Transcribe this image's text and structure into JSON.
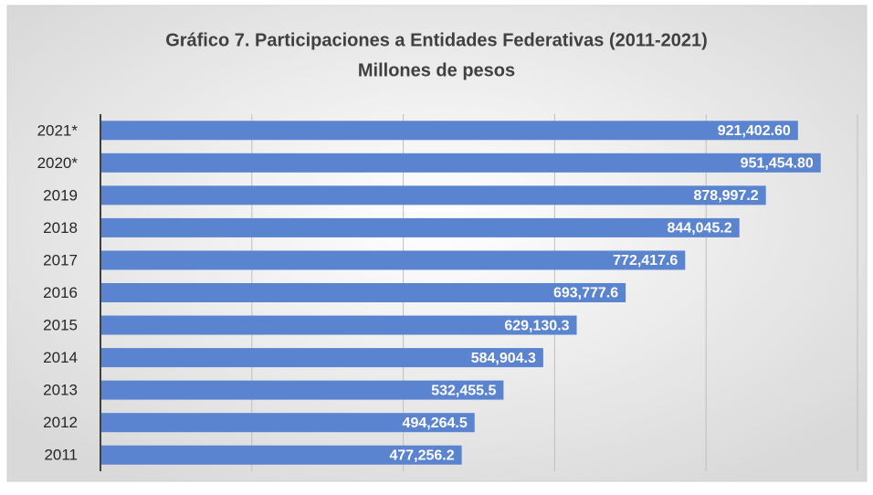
{
  "chart_data": {
    "type": "barh",
    "title": "Gráfico 7. Participaciones a Entidades Federativas (2011-2021)",
    "subtitle": "Millones de pesos",
    "categories": [
      "2021*",
      "2020*",
      "2019",
      "2018",
      "2017",
      "2016",
      "2015",
      "2014",
      "2013",
      "2012",
      "2011"
    ],
    "values": [
      921402.6,
      951454.8,
      878997.2,
      844045.2,
      772417.6,
      693777.6,
      629130.3,
      584904.3,
      532455.5,
      494264.5,
      477256.2
    ],
    "value_labels": [
      "921,402.60",
      "951,454.80",
      "878,997.2",
      "844,045.2",
      "772,417.6",
      "693,777.6",
      "629,130.3",
      "584,904.3",
      "532,455.5",
      "494,264.5",
      "477,256.2"
    ],
    "color": "#5b84d0",
    "xlim": [
      0,
      1000000
    ],
    "xticks": [
      0,
      200000,
      400000,
      600000,
      800000,
      1000000
    ],
    "grid": true
  }
}
